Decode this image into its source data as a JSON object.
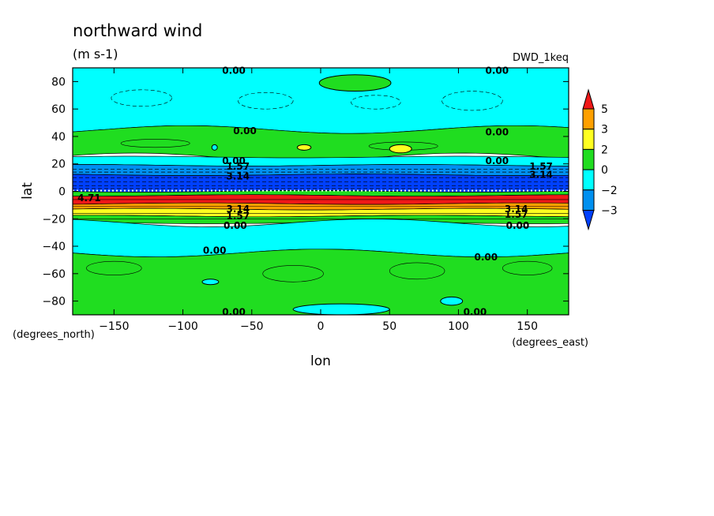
{
  "chart_data": {
    "type": "heatmap",
    "title": "northward wind",
    "units": "(m s-1)",
    "dataset": "DWD_1keq",
    "xlabel": "lon",
    "ylabel": "lat",
    "x_units_note": "(degrees_east)",
    "y_units_note": "(degrees_north)",
    "xlim": [
      -180,
      180
    ],
    "ylim": [
      -90,
      90
    ],
    "x_ticks": [
      -150,
      -100,
      -50,
      0,
      50,
      100,
      150
    ],
    "y_ticks": [
      -80,
      -60,
      -40,
      -20,
      0,
      20,
      40,
      60,
      80
    ],
    "colorbar": {
      "labels": [
        "5",
        "3",
        "2",
        "0",
        "−2",
        "−3"
      ],
      "colors": [
        "#f01818",
        "#ffa000",
        "#ffff20",
        "#20dd20",
        "#00ffff",
        "#0090f0",
        "#0040ff"
      ]
    },
    "latitude_bands": [
      {
        "lat_from": 90,
        "lat_to": 45,
        "color": "#00ffff"
      },
      {
        "lat_from": 45,
        "lat_to": 25,
        "color": "#20dd20"
      },
      {
        "lat_from": 25,
        "lat_to": 19,
        "color": "#00ffff"
      },
      {
        "lat_from": 19,
        "lat_to": 12,
        "color": "#0090f0"
      },
      {
        "lat_from": 12,
        "lat_to": 0,
        "color": "#0040ff"
      },
      {
        "lat_from": 0,
        "lat_to": -3,
        "color": "#20dd20"
      },
      {
        "lat_from": -3,
        "lat_to": -9,
        "color": "#f01818"
      },
      {
        "lat_from": -9,
        "lat_to": -13,
        "color": "#ffa000"
      },
      {
        "lat_from": -13,
        "lat_to": -18,
        "color": "#ffff20"
      },
      {
        "lat_from": -18,
        "lat_to": -23,
        "color": "#20dd20"
      },
      {
        "lat_from": -23,
        "lat_to": -45,
        "color": "#00ffff"
      },
      {
        "lat_from": -45,
        "lat_to": -90,
        "color": "#20dd20"
      }
    ],
    "contour_labels": [
      {
        "text": "0.00",
        "lon": -63,
        "lat": 88
      },
      {
        "text": "0.00",
        "lon": 128,
        "lat": 88
      },
      {
        "text": "0.00",
        "lon": -55,
        "lat": 44
      },
      {
        "text": "0.00",
        "lon": 128,
        "lat": 43
      },
      {
        "text": "0.00",
        "lon": -63,
        "lat": 22
      },
      {
        "text": "0.00",
        "lon": 128,
        "lat": 22
      },
      {
        "text": "1.57",
        "lon": -60,
        "lat": 18
      },
      {
        "text": "1.57",
        "lon": 160,
        "lat": 18
      },
      {
        "text": "3.14",
        "lon": -60,
        "lat": 11
      },
      {
        "text": "3.14",
        "lon": 160,
        "lat": 12
      },
      {
        "text": "4.71",
        "lon": -168,
        "lat": -5
      },
      {
        "text": "3.14",
        "lon": -60,
        "lat": -13
      },
      {
        "text": "3.14",
        "lon": 142,
        "lat": -13
      },
      {
        "text": "1.57",
        "lon": -60,
        "lat": -18
      },
      {
        "text": "1.57",
        "lon": 142,
        "lat": -17
      },
      {
        "text": "0.00",
        "lon": -62,
        "lat": -25
      },
      {
        "text": "0.00",
        "lon": 143,
        "lat": -25
      },
      {
        "text": "0.00",
        "lon": -77,
        "lat": -43
      },
      {
        "text": "0.00",
        "lon": 120,
        "lat": -48
      },
      {
        "text": "0.00",
        "lon": -63,
        "lat": -88
      },
      {
        "text": "0.00",
        "lon": 112,
        "lat": -88
      }
    ],
    "features": [
      {
        "kind": "green-patch",
        "lon": 25,
        "lat": 79,
        "rlon": 26,
        "rlat": 6
      },
      {
        "kind": "yellow-patch",
        "lon": 58,
        "lat": 31,
        "rlon": 8,
        "rlat": 3
      },
      {
        "kind": "yellow-patch",
        "lon": -12,
        "lat": 32,
        "rlon": 5,
        "rlat": 2
      },
      {
        "kind": "cyan-patch",
        "lon": -77,
        "lat": 32,
        "rlon": 2,
        "rlat": 2
      },
      {
        "kind": "cyan-patch",
        "lon": -80,
        "lat": -66,
        "rlon": 6,
        "rlat": 2
      },
      {
        "kind": "cyan-patch",
        "lon": 95,
        "lat": -80,
        "rlon": 8,
        "rlat": 3
      },
      {
        "kind": "cyan-patch",
        "lon": 15,
        "lat": -86,
        "rlon": 35,
        "rlat": 4
      }
    ]
  }
}
